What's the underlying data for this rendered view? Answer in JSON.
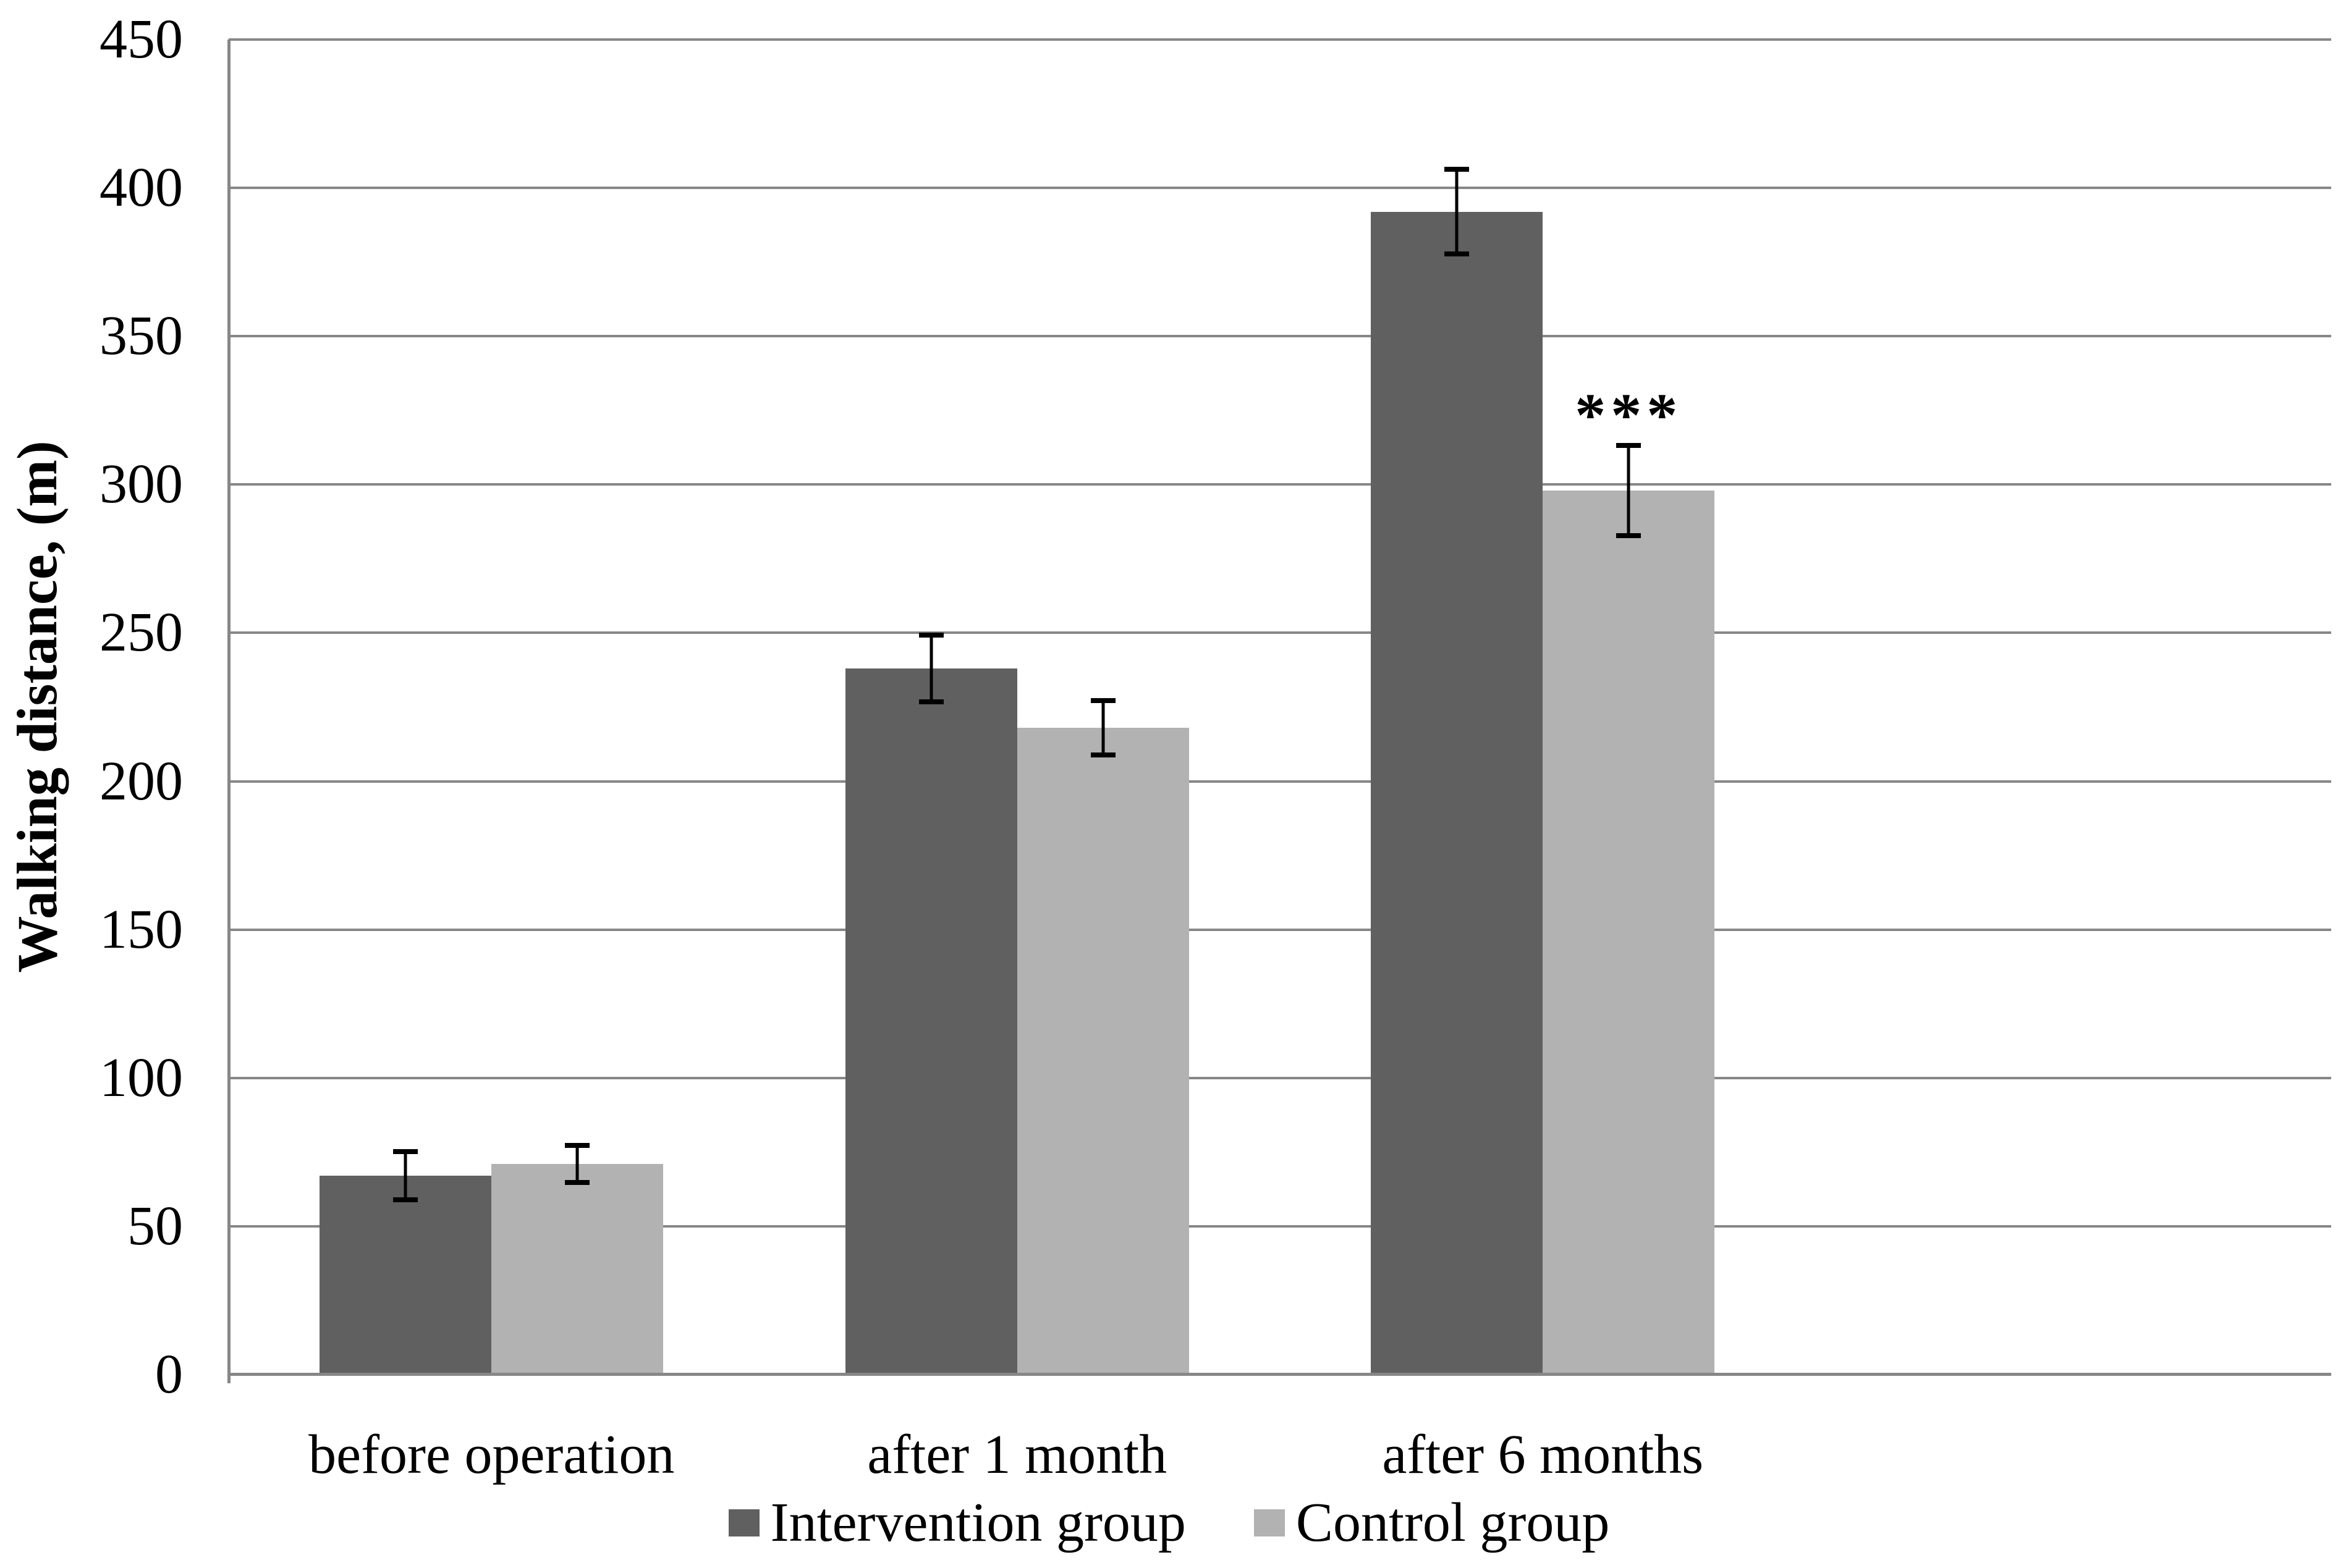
{
  "chart_data": {
    "type": "bar",
    "title": "",
    "xlabel": "",
    "ylabel": "Walking distance, (m)",
    "categories": [
      "before operation",
      "after 1 month",
      "after 6 months"
    ],
    "series": [
      {
        "name": "Intervention group",
        "color": "#606060",
        "values": [
          67,
          238,
          392
        ],
        "errors": [
          9,
          12,
          15
        ]
      },
      {
        "name": "Control group",
        "color": "#b2b2b2",
        "values": [
          71,
          218,
          298
        ],
        "errors": [
          7,
          10,
          16
        ]
      }
    ],
    "ylim": [
      0,
      450
    ],
    "ytick_step": 50,
    "yticks": [
      0,
      50,
      100,
      150,
      200,
      250,
      300,
      350,
      400,
      450
    ],
    "grid": "horizontal",
    "legend_position": "bottom",
    "annotation": {
      "text": "***",
      "category": "after 6 months",
      "series": "Control group",
      "y": 340
    }
  },
  "colors": {
    "background": "#ffffff",
    "gridline": "#878787",
    "axis": "#878787",
    "text": "#000000",
    "error_bar": "#000000"
  }
}
